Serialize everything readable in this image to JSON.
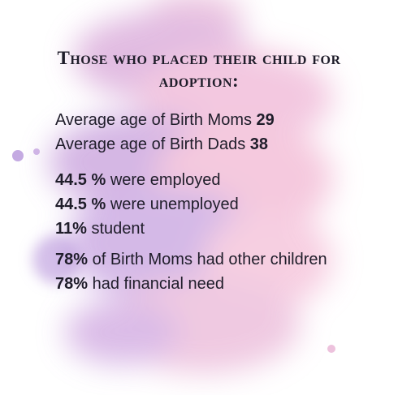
{
  "header": {
    "title": "Those who placed their child for adoption:"
  },
  "stats": [
    {
      "label": "Average age of Birth Moms",
      "value": "29"
    },
    {
      "label": "Average age of Birth Dads",
      "value": "38"
    },
    {
      "label": "were employed",
      "value": "44.5 %"
    },
    {
      "label": "were unemployed",
      "value": "44.5 %"
    },
    {
      "label": "student",
      "value": "11%"
    },
    {
      "label": "of Birth Moms had other children",
      "value": "78%"
    },
    {
      "label": "had financial need",
      "value": "78%"
    }
  ]
}
